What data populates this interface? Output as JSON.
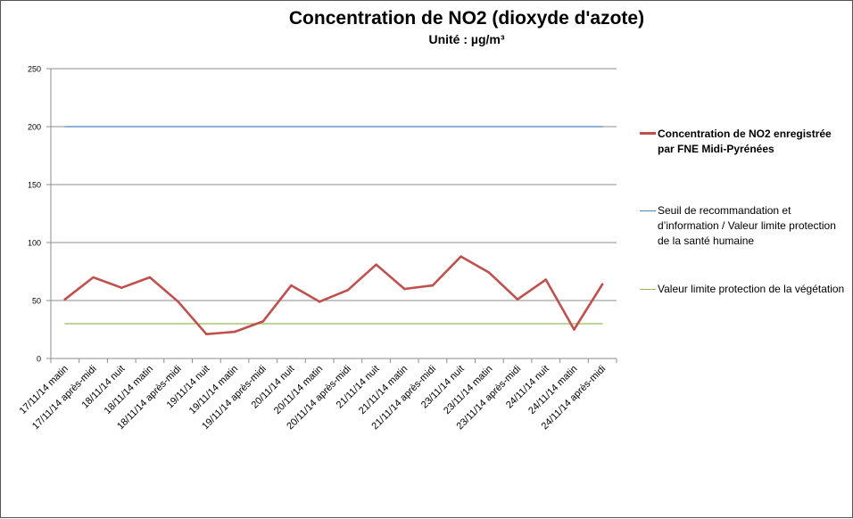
{
  "chart_data": {
    "type": "line",
    "title": "Concentration de NO2 (dioxyde d'azote)",
    "subtitle": "Unité : µg/m³",
    "xlabel": "",
    "ylabel": "",
    "ylim": [
      0,
      250
    ],
    "yticks": [
      "0",
      "50",
      "100",
      "150",
      "200",
      "250"
    ],
    "grid": true,
    "legend_position": "right",
    "categories": [
      "17/11/14 matin",
      "17/11/14 après-midi",
      "18/11/14 nuit",
      "18/11/14 matin",
      "18/11/14 après-midi",
      "19/11/14 nuit",
      "19/11/14 matin",
      "19/11/14 après-midi",
      "20/11/14 nuit",
      "20/11/14 matin",
      "20/11/14 après-midi",
      "21/11/14 nuit",
      "21/11/14 matin",
      "21/11/14 après-midi",
      "23/11/14 nuit",
      "23/11/14 matin",
      "23/11/14 après-midi",
      "24/11/14 nuit",
      "24/11/14 matin",
      "24/11/14 après-midi"
    ],
    "series": [
      {
        "name": "Concentration de NO2 enregistrée par FNE Midi-Pyrénées",
        "color": "#c0504d",
        "bold": true,
        "values": [
          51,
          70,
          61,
          70,
          49,
          21,
          23,
          32,
          63,
          49,
          59,
          81,
          60,
          63,
          88,
          74,
          51,
          68,
          25,
          64
        ]
      },
      {
        "name": "Seuil de recommandation et d’information / Valeur limite protection de la santé humaine",
        "color": "#4f81bd",
        "bold": false,
        "values": [
          200,
          200,
          200,
          200,
          200,
          200,
          200,
          200,
          200,
          200,
          200,
          200,
          200,
          200,
          200,
          200,
          200,
          200,
          200,
          200
        ]
      },
      {
        "name": "Valeur limite protection de la végétation",
        "color": "#9bbb59",
        "bold": false,
        "values": [
          30,
          30,
          30,
          30,
          30,
          30,
          30,
          30,
          30,
          30,
          30,
          30,
          30,
          30,
          30,
          30,
          30,
          30,
          30,
          30
        ]
      }
    ]
  }
}
